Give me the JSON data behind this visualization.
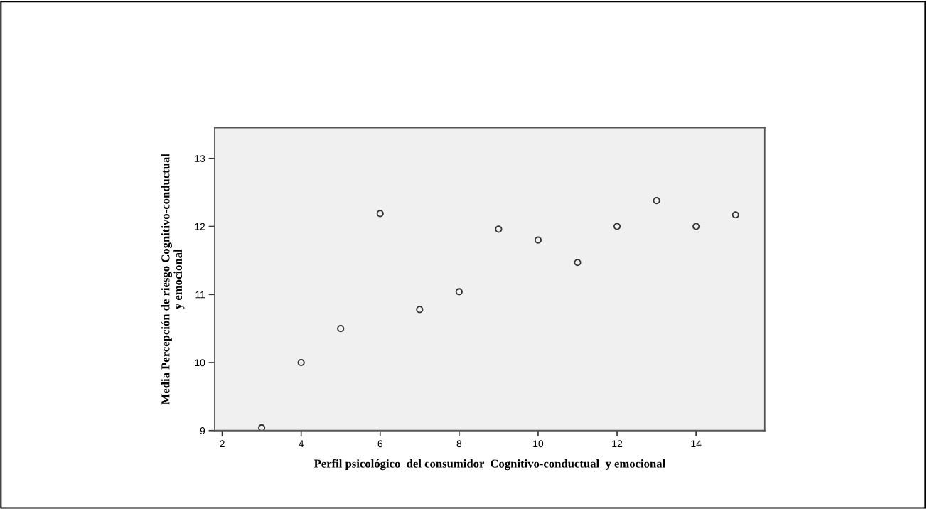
{
  "chart_data": {
    "type": "scatter",
    "xlabel": "Perfil psicológico  del consumidor  Cognitivo-conductual  y emocional",
    "ylabel": "Media Percepción de riesgo Cognitivo-conductual\ny emocional",
    "x": [
      3,
      4,
      5,
      6,
      7,
      8,
      9,
      10,
      11,
      12,
      13,
      14,
      15
    ],
    "values": [
      9.04,
      10.0,
      10.5,
      12.19,
      10.78,
      11.04,
      11.96,
      11.8,
      11.47,
      12.0,
      12.38,
      12.0,
      12.17
    ],
    "color": "#333333",
    "marker": "circle",
    "xlim": [
      1.81,
      15.74
    ],
    "xticks": [
      2,
      4,
      6,
      8,
      10,
      12,
      14
    ],
    "ylim": [
      9,
      13.45
    ],
    "yticks": [
      9,
      10,
      11,
      12,
      13
    ],
    "grid": false,
    "legend": false
  }
}
